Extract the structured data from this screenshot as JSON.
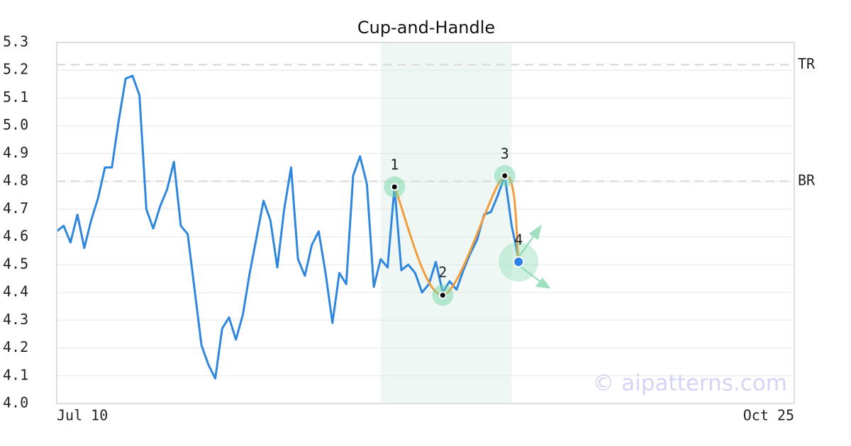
{
  "chart_data": {
    "type": "line",
    "title": "Cup-and-Handle",
    "color": "#2e86de",
    "x": [
      "Jul 10",
      "Jul 11",
      "Jul 12",
      "Jul 13",
      "Jul 14",
      "Jul 15",
      "Jul 16",
      "Jul 17",
      "Jul 18",
      "Jul 19",
      "Jul 20",
      "Jul 21",
      "Jul 22",
      "Jul 23",
      "Jul 24",
      "Jul 25",
      "Jul 26",
      "Jul 27",
      "Jul 28",
      "Jul 29",
      "Jul 30",
      "Jul 31",
      "Aug 1",
      "Aug 2",
      "Aug 3",
      "Aug 4",
      "Aug 5",
      "Aug 6",
      "Aug 7",
      "Aug 8",
      "Aug 9",
      "Aug 10",
      "Aug 11",
      "Aug 12",
      "Aug 13",
      "Aug 14",
      "Aug 15",
      "Aug 16",
      "Aug 17",
      "Aug 18",
      "Aug 19",
      "Aug 20",
      "Aug 21",
      "Aug 22",
      "Aug 23",
      "Aug 24",
      "Aug 25",
      "Aug 26",
      "Aug 27",
      "Aug 28",
      "Aug 29",
      "Aug 30",
      "Aug 31",
      "Sep 1",
      "Sep 2",
      "Sep 3",
      "Sep 4",
      "Sep 5",
      "Sep 6",
      "Sep 7",
      "Sep 8",
      "Sep 9",
      "Sep 10",
      "Sep 11",
      "Sep 12",
      "Sep 13",
      "Sep 14",
      "Sep 15"
    ],
    "values": [
      4.62,
      4.64,
      4.58,
      4.68,
      4.56,
      4.66,
      4.74,
      4.85,
      4.85,
      5.02,
      5.17,
      5.18,
      5.11,
      4.7,
      4.63,
      4.71,
      4.77,
      4.87,
      4.64,
      4.61,
      4.41,
      4.21,
      4.14,
      4.09,
      4.27,
      4.31,
      4.23,
      4.32,
      4.47,
      4.6,
      4.73,
      4.66,
      4.49,
      4.7,
      4.85,
      4.52,
      4.46,
      4.57,
      4.62,
      4.47,
      4.29,
      4.47,
      4.43,
      4.82,
      4.89,
      4.79,
      4.42,
      4.52,
      4.49,
      4.78,
      4.48,
      4.5,
      4.47,
      4.4,
      4.43,
      4.51,
      4.4,
      4.44,
      4.41,
      4.48,
      4.54,
      4.59,
      4.68,
      4.69,
      4.75,
      4.82,
      4.64,
      4.52
    ],
    "xlim": [
      "Jul 10",
      "Oct 25"
    ],
    "xticks": [
      "Jul 10",
      "Oct 25"
    ],
    "ylim": [
      4.0,
      5.3
    ],
    "yticks": [
      {
        "value": 4.0,
        "label": "4.0"
      },
      4.1,
      4.2,
      4.3,
      4.4,
      4.5,
      4.6,
      4.7,
      4.8,
      4.9,
      {
        "value": 5.0,
        "label": "5.0"
      },
      5.1,
      5.2,
      5.3
    ],
    "grid": true,
    "highlight": [
      "Aug 26",
      "Sep 14"
    ],
    "reference_lines": [
      {
        "label": "TR",
        "value": 5.22
      },
      {
        "label": "BR",
        "value": 4.8
      }
    ],
    "pattern": {
      "color": "#f39c3c",
      "points": [
        {
          "label": "1",
          "x": "Aug 28",
          "y": 4.78
        },
        {
          "label": "2",
          "x": "Sep 4",
          "y": 4.39
        },
        {
          "label": "3",
          "x": "Sep 13",
          "y": 4.82
        },
        {
          "label": "4",
          "x": "Sep 15",
          "y": 4.51
        }
      ]
    },
    "watermark": "© aipatterns.com"
  }
}
